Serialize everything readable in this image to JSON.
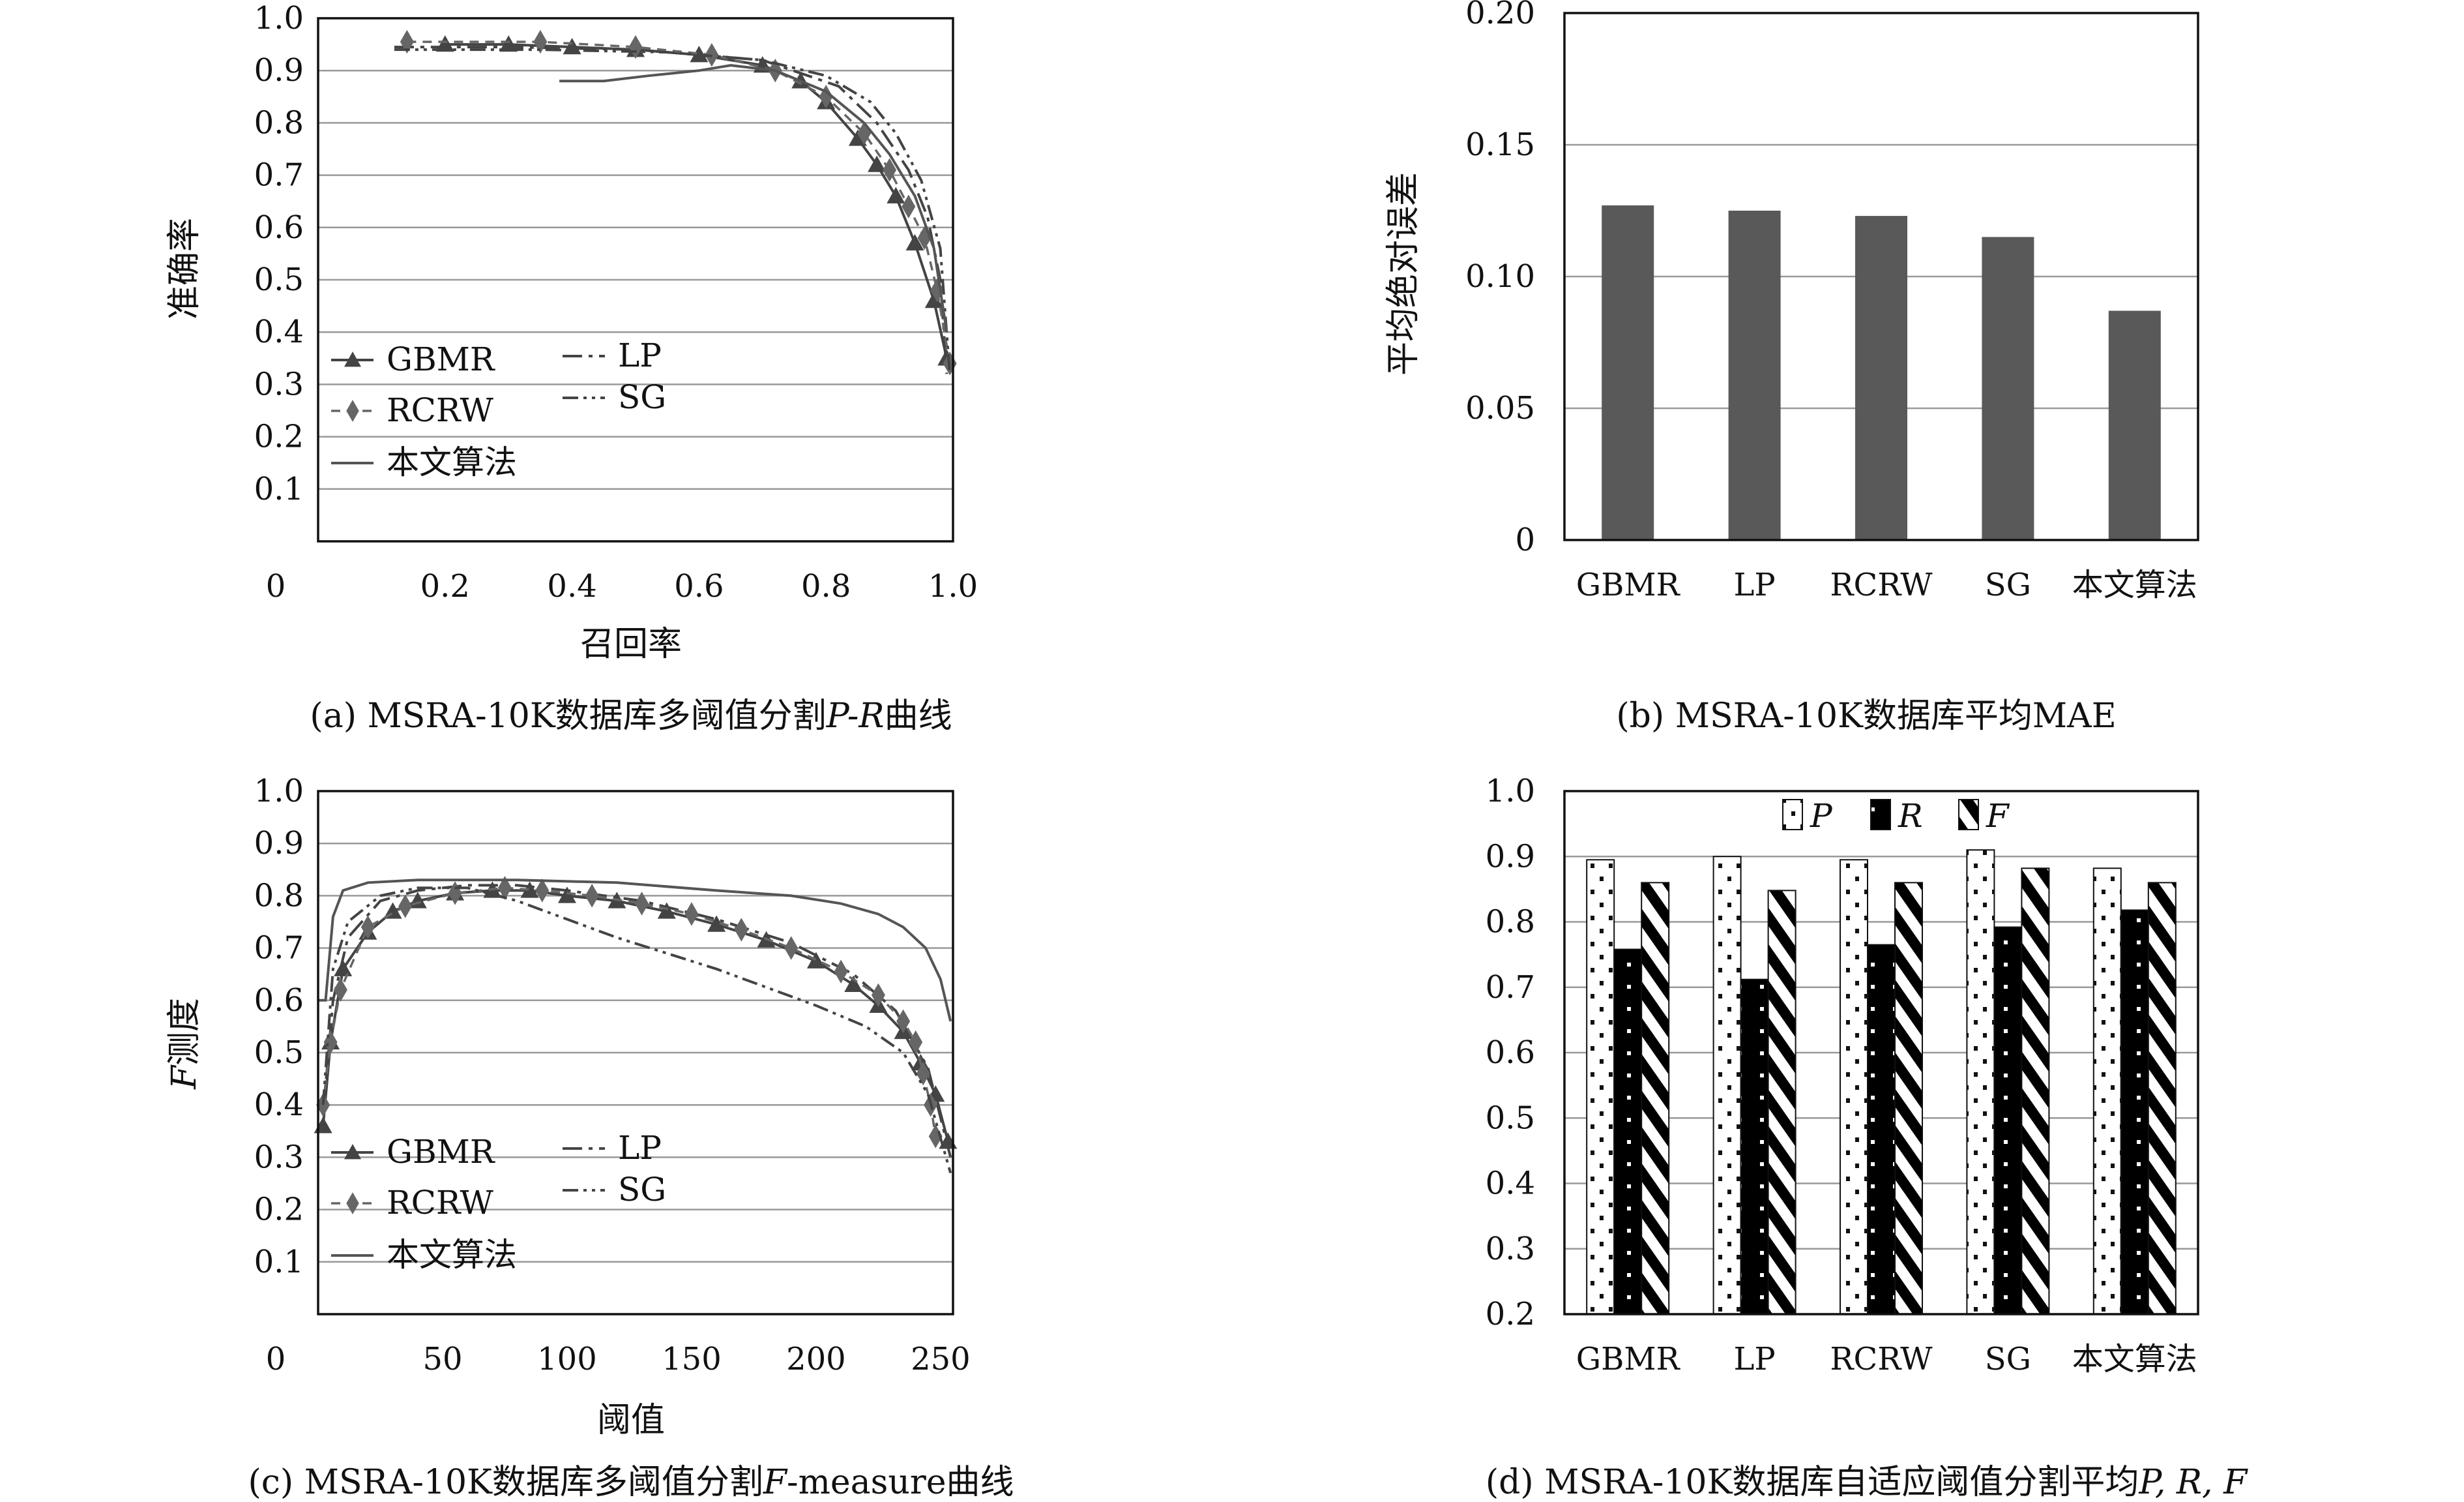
{
  "colors": {
    "axis": "#111111",
    "grid": "#999999",
    "bar_fill": "#595959",
    "series_dark": "#444444",
    "series_mid": "#666666",
    "proposed": "#555555"
  },
  "panels": [
    {
      "caption_prefix": "(a) MSRA-10K数据库多阈值分割",
      "caption_italic": "P-R",
      "caption_suffix": "曲线",
      "xlabel": "召回率",
      "ylabel": "准确率",
      "x_ticks": [
        "0",
        "0.2",
        "0.4",
        "0.6",
        "0.8",
        "1.0"
      ],
      "y_ticks": [
        "0.1",
        "0.2",
        "0.3",
        "0.4",
        "0.5",
        "0.6",
        "0.7",
        "0.8",
        "0.9",
        "1.0"
      ],
      "legend": [
        "GBMR",
        "LP",
        "RCRW",
        "SG",
        "本文算法"
      ]
    },
    {
      "caption": "(b) MSRA-10K数据库平均MAE",
      "ylabel": "平均绝对误差",
      "y_ticks": [
        "0",
        "0.05",
        "0.10",
        "0.15",
        "0.20"
      ]
    },
    {
      "caption_prefix": "(c) MSRA-10K数据库多阈值分割",
      "caption_italic": "F",
      "caption_suffix": "-measure曲线",
      "xlabel": "阈值",
      "ylabel_italic": "F",
      "ylabel_rest": "测度",
      "x_ticks": [
        "0",
        "50",
        "100",
        "150",
        "200",
        "250"
      ],
      "y_ticks": [
        "0.1",
        "0.2",
        "0.3",
        "0.4",
        "0.5",
        "0.6",
        "0.7",
        "0.8",
        "0.9",
        "1.0"
      ],
      "legend": [
        "GBMR",
        "LP",
        "RCRW",
        "SG",
        "本文算法"
      ]
    },
    {
      "caption_prefix": "(d) MSRA-10K数据库自适应阈值分割平均",
      "caption_italic": "P, R, F",
      "y_ticks": [
        "0.2",
        "0.3",
        "0.4",
        "0.5",
        "0.6",
        "0.7",
        "0.8",
        "0.9",
        "1.0"
      ],
      "legend": [
        "P",
        "R",
        "F"
      ]
    }
  ],
  "chart_data": [
    {
      "type": "line",
      "xlim": [
        0,
        1
      ],
      "ylim": [
        0,
        1
      ],
      "series": [
        {
          "name": "GBMR",
          "points": [
            [
              0.2,
              0.95
            ],
            [
              0.3,
              0.95
            ],
            [
              0.4,
              0.945
            ],
            [
              0.5,
              0.94
            ],
            [
              0.6,
              0.93
            ],
            [
              0.7,
              0.91
            ],
            [
              0.76,
              0.88
            ],
            [
              0.8,
              0.84
            ],
            [
              0.85,
              0.77
            ],
            [
              0.88,
              0.72
            ],
            [
              0.91,
              0.66
            ],
            [
              0.94,
              0.57
            ],
            [
              0.97,
              0.46
            ],
            [
              0.99,
              0.35
            ]
          ]
        },
        {
          "name": "LP",
          "points": [
            [
              0.12,
              0.945
            ],
            [
              0.3,
              0.945
            ],
            [
              0.5,
              0.94
            ],
            [
              0.7,
              0.92
            ],
            [
              0.82,
              0.87
            ],
            [
              0.88,
              0.8
            ],
            [
              0.93,
              0.71
            ],
            [
              0.96,
              0.62
            ],
            [
              0.98,
              0.5
            ],
            [
              0.99,
              0.32
            ]
          ]
        },
        {
          "name": "RCRW",
          "points": [
            [
              0.14,
              0.955
            ],
            [
              0.35,
              0.955
            ],
            [
              0.5,
              0.945
            ],
            [
              0.62,
              0.93
            ],
            [
              0.72,
              0.9
            ],
            [
              0.8,
              0.85
            ],
            [
              0.86,
              0.78
            ],
            [
              0.9,
              0.71
            ],
            [
              0.93,
              0.64
            ],
            [
              0.955,
              0.58
            ],
            [
              0.975,
              0.48
            ],
            [
              0.995,
              0.34
            ]
          ]
        },
        {
          "name": "SG",
          "points": [
            [
              0.12,
              0.94
            ],
            [
              0.35,
              0.94
            ],
            [
              0.55,
              0.935
            ],
            [
              0.7,
              0.92
            ],
            [
              0.8,
              0.89
            ],
            [
              0.87,
              0.84
            ],
            [
              0.91,
              0.78
            ],
            [
              0.95,
              0.69
            ],
            [
              0.98,
              0.56
            ],
            [
              0.995,
              0.32
            ]
          ]
        },
        {
          "name": "本文算法",
          "points": [
            [
              0.38,
              0.88
            ],
            [
              0.45,
              0.88
            ],
            [
              0.52,
              0.89
            ],
            [
              0.6,
              0.9
            ],
            [
              0.65,
              0.91
            ],
            [
              0.72,
              0.9
            ],
            [
              0.8,
              0.86
            ],
            [
              0.86,
              0.8
            ],
            [
              0.9,
              0.74
            ],
            [
              0.94,
              0.66
            ],
            [
              0.97,
              0.56
            ],
            [
              0.99,
              0.4
            ]
          ]
        }
      ]
    },
    {
      "type": "bar",
      "categories": [
        "GBMR",
        "LP",
        "RCRW",
        "SG",
        "本文算法"
      ],
      "values": [
        0.127,
        0.125,
        0.123,
        0.115,
        0.087
      ],
      "ylim": [
        0,
        0.2
      ]
    },
    {
      "type": "line",
      "xlim": [
        0,
        255
      ],
      "ylim": [
        0,
        1
      ],
      "series": [
        {
          "name": "GBMR",
          "points": [
            [
              2,
              0.36
            ],
            [
              5,
              0.52
            ],
            [
              10,
              0.66
            ],
            [
              20,
              0.73
            ],
            [
              30,
              0.77
            ],
            [
              40,
              0.79
            ],
            [
              55,
              0.805
            ],
            [
              70,
              0.81
            ],
            [
              85,
              0.81
            ],
            [
              100,
              0.8
            ],
            [
              120,
              0.79
            ],
            [
              140,
              0.77
            ],
            [
              160,
              0.745
            ],
            [
              180,
              0.715
            ],
            [
              200,
              0.675
            ],
            [
              215,
              0.63
            ],
            [
              225,
              0.59
            ],
            [
              235,
              0.54
            ],
            [
              242,
              0.48
            ],
            [
              248,
              0.42
            ],
            [
              253,
              0.33
            ]
          ]
        },
        {
          "name": "LP",
          "points": [
            [
              2,
              0.38
            ],
            [
              6,
              0.6
            ],
            [
              12,
              0.72
            ],
            [
              25,
              0.79
            ],
            [
              40,
              0.81
            ],
            [
              60,
              0.82
            ],
            [
              80,
              0.82
            ],
            [
              100,
              0.81
            ],
            [
              130,
              0.79
            ],
            [
              160,
              0.755
            ],
            [
              190,
              0.71
            ],
            [
              215,
              0.65
            ],
            [
              232,
              0.58
            ],
            [
              245,
              0.47
            ],
            [
              254,
              0.3
            ]
          ]
        },
        {
          "name": "RCRW",
          "points": [
            [
              2,
              0.4
            ],
            [
              5,
              0.52
            ],
            [
              9,
              0.62
            ],
            [
              20,
              0.74
            ],
            [
              35,
              0.78
            ],
            [
              55,
              0.805
            ],
            [
              75,
              0.815
            ],
            [
              90,
              0.81
            ],
            [
              110,
              0.8
            ],
            [
              130,
              0.785
            ],
            [
              150,
              0.765
            ],
            [
              170,
              0.735
            ],
            [
              190,
              0.7
            ],
            [
              210,
              0.655
            ],
            [
              225,
              0.61
            ],
            [
              235,
              0.56
            ],
            [
              240,
              0.52
            ],
            [
              243,
              0.46
            ],
            [
              246,
              0.4
            ],
            [
              248,
              0.34
            ]
          ]
        },
        {
          "name": "SG",
          "points": [
            [
              2,
              0.4
            ],
            [
              6,
              0.66
            ],
            [
              12,
              0.75
            ],
            [
              25,
              0.8
            ],
            [
              40,
              0.815
            ],
            [
              60,
              0.815
            ],
            [
              80,
              0.79
            ],
            [
              100,
              0.755
            ],
            [
              120,
              0.72
            ],
            [
              140,
              0.69
            ],
            [
              160,
              0.66
            ],
            [
              180,
              0.625
            ],
            [
              200,
              0.59
            ],
            [
              220,
              0.55
            ],
            [
              235,
              0.5
            ],
            [
              245,
              0.42
            ],
            [
              254,
              0.27
            ]
          ]
        },
        {
          "name": "本文算法",
          "points": [
            [
              0,
              0.6
            ],
            [
              3,
              0.6
            ],
            [
              6,
              0.76
            ],
            [
              10,
              0.81
            ],
            [
              20,
              0.825
            ],
            [
              40,
              0.83
            ],
            [
              80,
              0.83
            ],
            [
              120,
              0.825
            ],
            [
              160,
              0.81
            ],
            [
              190,
              0.8
            ],
            [
              210,
              0.785
            ],
            [
              225,
              0.765
            ],
            [
              235,
              0.74
            ],
            [
              244,
              0.7
            ],
            [
              250,
              0.64
            ],
            [
              254,
              0.56
            ]
          ]
        }
      ]
    },
    {
      "type": "bar",
      "categories": [
        "GBMR",
        "LP",
        "RCRW",
        "SG",
        "本文算法"
      ],
      "series": [
        {
          "name": "P",
          "values": [
            0.895,
            0.9,
            0.895,
            0.91,
            0.882
          ]
        },
        {
          "name": "R",
          "values": [
            0.758,
            0.712,
            0.765,
            0.792,
            0.818
          ]
        },
        {
          "name": "F",
          "values": [
            0.86,
            0.848,
            0.86,
            0.882,
            0.86
          ]
        }
      ],
      "ylim": [
        0.2,
        1.0
      ]
    }
  ]
}
